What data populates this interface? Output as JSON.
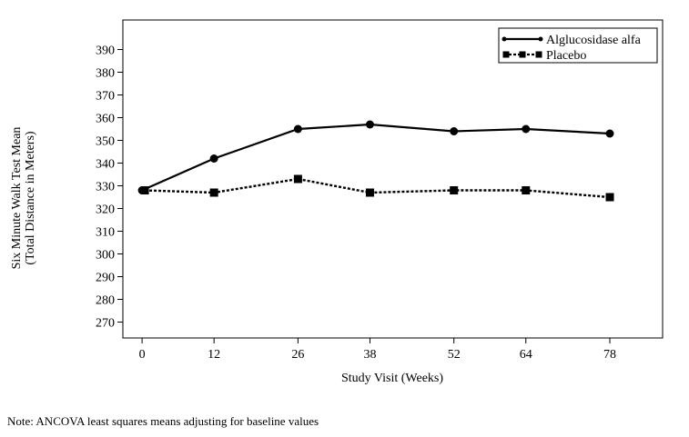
{
  "chart_data": {
    "type": "line",
    "x": [
      0,
      12,
      26,
      38,
      52,
      64,
      78
    ],
    "xlabel": "Study Visit (Weeks)",
    "ylabel_lines": [
      "Six Minute Walk Test Mean",
      "(Total Distance in Meters)"
    ],
    "y_ticks": [
      270,
      280,
      290,
      300,
      310,
      320,
      330,
      340,
      350,
      360,
      370,
      380,
      390
    ],
    "ylim": [
      263,
      403
    ],
    "xlim": [
      -3.2,
      86.8
    ],
    "series": [
      {
        "name": "Alglucosidase alfa",
        "values": [
          328,
          342,
          355,
          357,
          354,
          355,
          353
        ],
        "color": "#000000",
        "dash": "solid",
        "marker": "circle"
      },
      {
        "name": "Placebo",
        "values": [
          328,
          327,
          333,
          327,
          328,
          328,
          325
        ],
        "color": "#000000",
        "dash": "dotted",
        "marker": "square"
      }
    ],
    "legend": "top-right",
    "grid": false
  },
  "note": "Note: ANCOVA least squares means adjusting for baseline values"
}
